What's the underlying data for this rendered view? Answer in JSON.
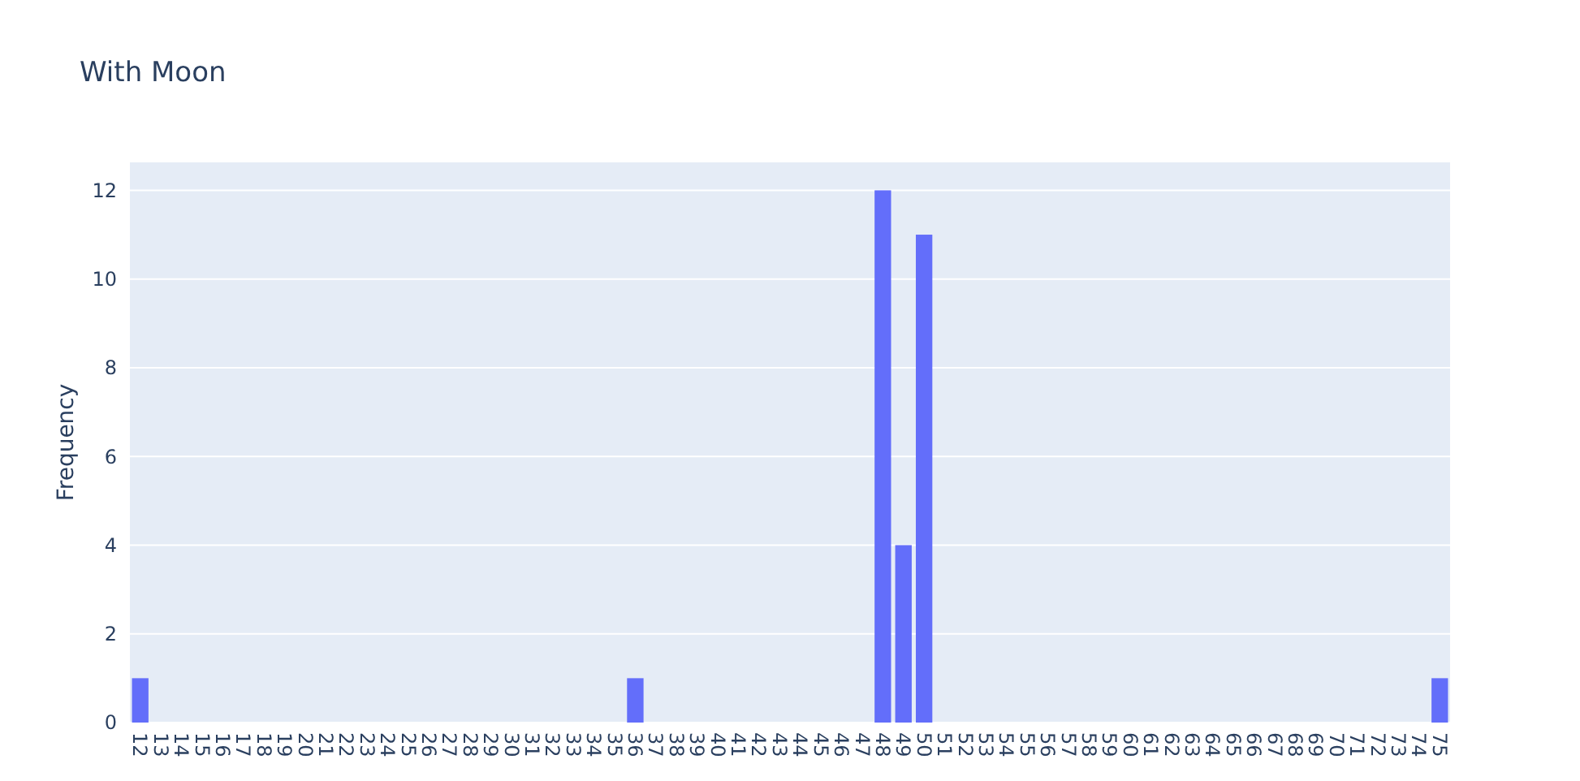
{
  "chart_data": {
    "type": "bar",
    "title": "With Moon",
    "ylabel": "Frequency",
    "categories": [
      "12",
      "13",
      "14",
      "15",
      "16",
      "17",
      "18",
      "19",
      "20",
      "21",
      "22",
      "23",
      "24",
      "25",
      "26",
      "27",
      "28",
      "29",
      "30",
      "31",
      "32",
      "33",
      "34",
      "35",
      "36",
      "37",
      "38",
      "39",
      "40",
      "41",
      "42",
      "43",
      "44",
      "45",
      "46",
      "47",
      "48",
      "49",
      "50",
      "51",
      "52",
      "53",
      "54",
      "55",
      "56",
      "57",
      "58",
      "59",
      "60",
      "61",
      "62",
      "63",
      "64",
      "65",
      "66",
      "67",
      "68",
      "69",
      "70",
      "71",
      "72",
      "73",
      "74",
      "75"
    ],
    "values": [
      1,
      0,
      0,
      0,
      0,
      0,
      0,
      0,
      0,
      0,
      0,
      0,
      0,
      0,
      0,
      0,
      0,
      0,
      0,
      0,
      0,
      0,
      0,
      0,
      1,
      0,
      0,
      0,
      0,
      0,
      0,
      0,
      0,
      0,
      0,
      0,
      12,
      4,
      11,
      0,
      0,
      0,
      0,
      0,
      0,
      0,
      0,
      0,
      0,
      0,
      0,
      0,
      0,
      0,
      0,
      0,
      0,
      0,
      0,
      0,
      0,
      0,
      0,
      1
    ],
    "color": "#636efa",
    "ylim": [
      0,
      12.63
    ],
    "yticks": [
      0,
      2,
      4,
      6,
      8,
      10,
      12
    ],
    "grid": "y"
  }
}
